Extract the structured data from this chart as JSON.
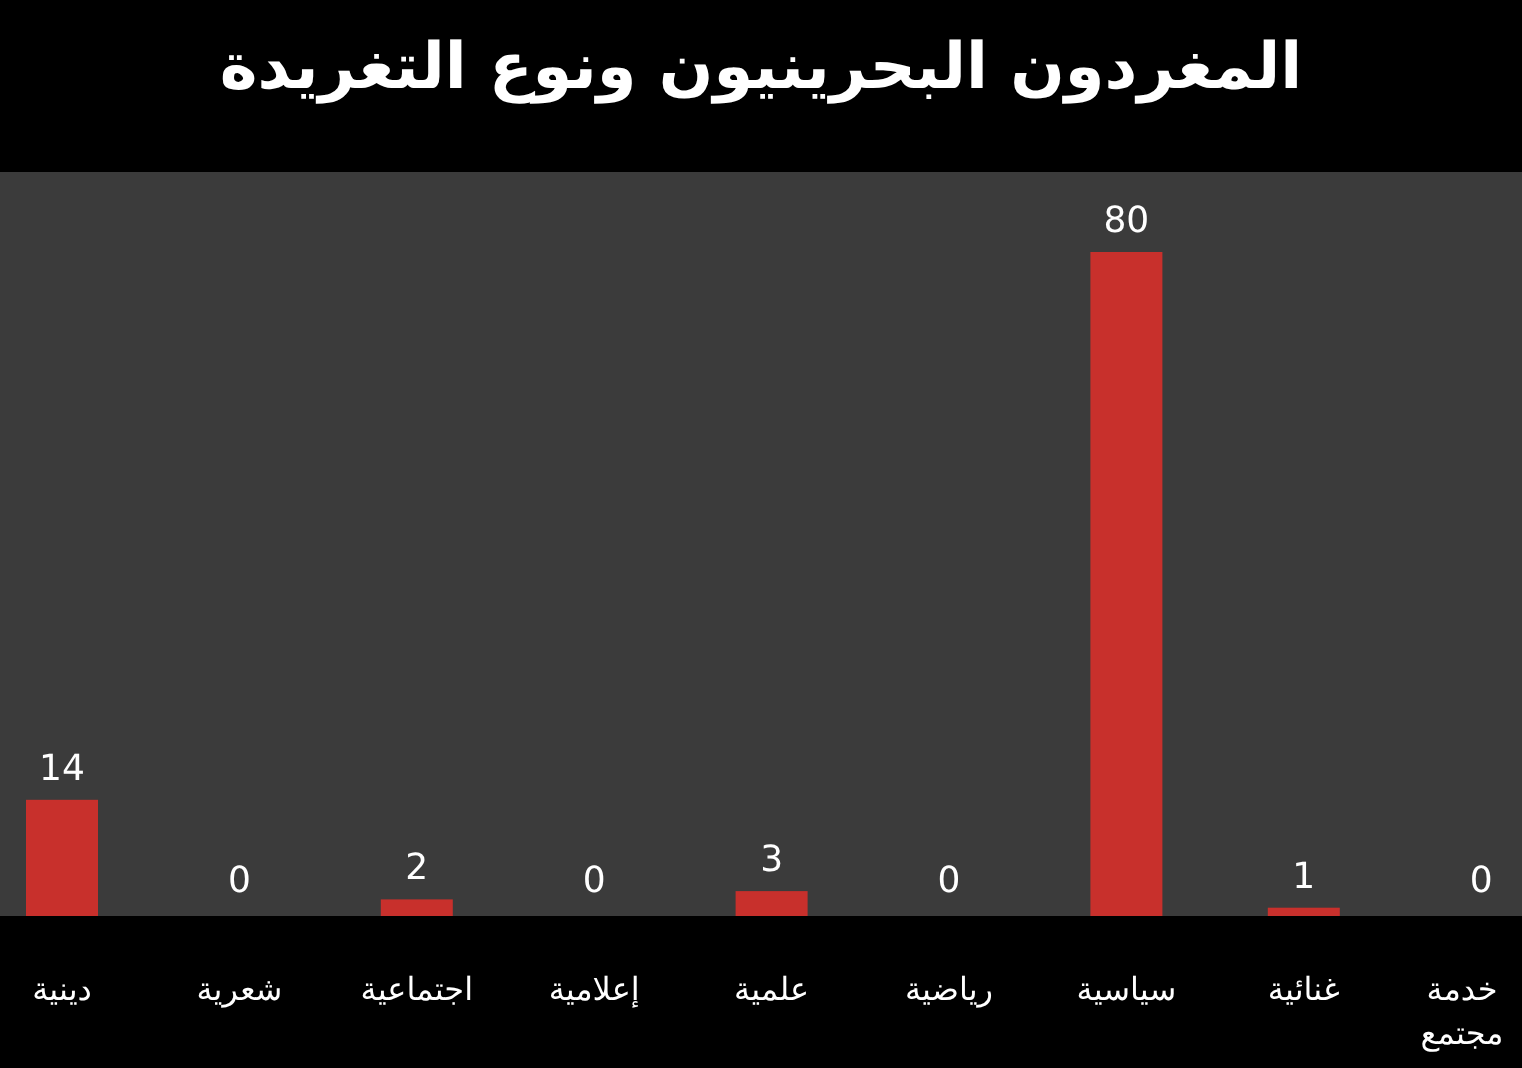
{
  "chart_data": {
    "type": "bar",
    "title": "المغردون البحرينيون ونوع التغريدة",
    "categories": [
      "دينية",
      "شعرية",
      "اجتماعية",
      "إعلامية",
      "علمية",
      "رياضية",
      "سياسية",
      "غنائية",
      "خدمة مجتمع"
    ],
    "values": [
      14,
      0,
      2,
      0,
      3,
      0,
      80,
      1,
      0
    ],
    "color": "#c8302c",
    "data_labels": true
  }
}
